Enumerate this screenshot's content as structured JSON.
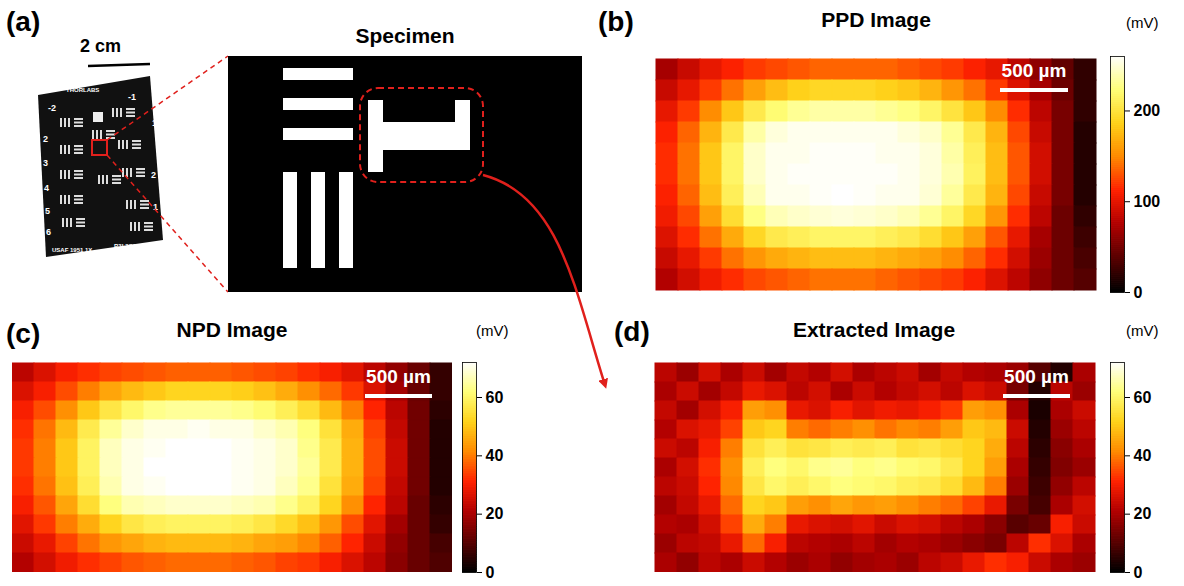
{
  "chart_data": [
    {
      "type": "image",
      "label": "(a)",
      "title": "Specimen",
      "scale_bar": "2 cm",
      "target_texts": [
        "THORLABS",
        "-2",
        "-1",
        "2",
        "3",
        "4",
        "5",
        "6",
        "1",
        "2",
        "1",
        "USAF 1951 1X",
        "R3L3S1N"
      ]
    },
    {
      "type": "heatmap",
      "label": "(b)",
      "title": "PPD Image",
      "scale_bar": "500 µm",
      "colorbar_label": "(mV)",
      "clim": [
        0,
        260
      ],
      "cticks": [
        0,
        100,
        200
      ],
      "cells": [
        [
          70,
          85,
          100,
          110,
          120,
          125,
          130,
          135,
          135,
          135,
          135,
          130,
          125,
          120,
          110,
          100,
          80,
          60,
          40,
          20
        ],
        [
          85,
          100,
          120,
          140,
          160,
          175,
          185,
          190,
          190,
          190,
          185,
          180,
          170,
          155,
          140,
          120,
          95,
          70,
          45,
          20
        ],
        [
          100,
          120,
          150,
          180,
          205,
          220,
          230,
          235,
          235,
          235,
          230,
          225,
          215,
          200,
          180,
          150,
          115,
          80,
          50,
          20
        ],
        [
          110,
          135,
          170,
          205,
          235,
          250,
          255,
          255,
          255,
          255,
          255,
          250,
          245,
          230,
          205,
          170,
          125,
          85,
          50,
          15
        ],
        [
          115,
          140,
          180,
          215,
          245,
          255,
          255,
          258,
          258,
          258,
          255,
          255,
          250,
          235,
          210,
          175,
          130,
          90,
          50,
          15
        ],
        [
          115,
          140,
          180,
          215,
          245,
          255,
          258,
          258,
          258,
          258,
          258,
          255,
          250,
          238,
          212,
          175,
          130,
          90,
          50,
          15
        ],
        [
          110,
          135,
          175,
          210,
          240,
          255,
          255,
          258,
          260,
          258,
          255,
          255,
          248,
          232,
          205,
          170,
          125,
          85,
          50,
          15
        ],
        [
          105,
          125,
          160,
          195,
          225,
          240,
          245,
          248,
          250,
          248,
          245,
          240,
          230,
          215,
          190,
          155,
          115,
          80,
          45,
          20
        ],
        [
          95,
          115,
          140,
          165,
          190,
          205,
          210,
          215,
          215,
          215,
          210,
          205,
          195,
          180,
          160,
          130,
          100,
          70,
          45,
          25
        ],
        [
          85,
          100,
          120,
          140,
          155,
          165,
          170,
          175,
          175,
          175,
          170,
          165,
          160,
          150,
          135,
          115,
          90,
          65,
          45,
          30
        ],
        [
          75,
          90,
          105,
          115,
          125,
          130,
          135,
          140,
          140,
          140,
          135,
          130,
          125,
          120,
          110,
          95,
          80,
          60,
          45,
          35
        ]
      ]
    },
    {
      "type": "heatmap",
      "label": "(c)",
      "title": "NPD Image",
      "scale_bar": "500 µm",
      "colorbar_label": "(mV)",
      "clim": [
        0,
        72
      ],
      "cticks": [
        0,
        20,
        40,
        60
      ],
      "cells": [
        [
          22,
          26,
          30,
          32,
          34,
          35,
          36,
          37,
          37,
          37,
          36,
          35,
          34,
          32,
          30,
          27,
          22,
          17,
          12,
          6
        ],
        [
          26,
          30,
          35,
          40,
          45,
          48,
          50,
          52,
          52,
          52,
          51,
          49,
          46,
          42,
          38,
          33,
          26,
          19,
          12,
          6
        ],
        [
          30,
          35,
          42,
          50,
          56,
          60,
          63,
          64,
          64,
          64,
          63,
          61,
          58,
          54,
          48,
          40,
          31,
          22,
          13,
          5
        ],
        [
          32,
          39,
          48,
          57,
          64,
          68,
          70,
          70,
          71,
          70,
          70,
          68,
          66,
          62,
          55,
          46,
          34,
          23,
          13,
          4
        ],
        [
          33,
          40,
          50,
          59,
          67,
          70,
          71,
          72,
          72,
          72,
          71,
          70,
          68,
          63,
          57,
          47,
          35,
          24,
          13,
          4
        ],
        [
          33,
          40,
          50,
          59,
          67,
          70,
          72,
          72,
          72,
          72,
          71,
          70,
          68,
          64,
          57,
          47,
          35,
          24,
          13,
          4
        ],
        [
          32,
          39,
          49,
          58,
          66,
          70,
          71,
          72,
          72,
          72,
          71,
          70,
          67,
          63,
          55,
          46,
          34,
          23,
          13,
          4
        ],
        [
          30,
          36,
          45,
          54,
          62,
          66,
          67,
          68,
          68,
          68,
          67,
          66,
          63,
          59,
          52,
          42,
          31,
          22,
          12,
          5
        ],
        [
          27,
          33,
          40,
          46,
          52,
          56,
          58,
          59,
          59,
          59,
          58,
          56,
          53,
          49,
          43,
          35,
          27,
          19,
          12,
          6
        ],
        [
          24,
          28,
          34,
          39,
          43,
          45,
          47,
          48,
          48,
          48,
          47,
          45,
          44,
          41,
          37,
          31,
          24,
          17,
          12,
          8
        ],
        [
          21,
          25,
          29,
          32,
          34,
          36,
          37,
          38,
          38,
          38,
          37,
          36,
          34,
          33,
          30,
          26,
          22,
          16,
          12,
          9
        ]
      ]
    },
    {
      "type": "heatmap",
      "label": "(d)",
      "title": "Extracted Image",
      "scale_bar": "500 µm",
      "colorbar_label": "(mV)",
      "clim": [
        0,
        72
      ],
      "cticks": [
        0,
        20,
        40,
        60
      ],
      "cells": [
        [
          22,
          18,
          25,
          20,
          24,
          19,
          23,
          21,
          25,
          20,
          22,
          24,
          19,
          23,
          21,
          20,
          18,
          10,
          4,
          20
        ],
        [
          20,
          24,
          19,
          23,
          28,
          26,
          22,
          25,
          20,
          24,
          21,
          23,
          25,
          22,
          26,
          24,
          14,
          4,
          22,
          18
        ],
        [
          23,
          19,
          25,
          30,
          44,
          42,
          28,
          26,
          30,
          27,
          29,
          28,
          30,
          33,
          44,
          42,
          20,
          3,
          20,
          24
        ],
        [
          21,
          26,
          28,
          34,
          50,
          52,
          40,
          38,
          40,
          42,
          39,
          41,
          40,
          44,
          50,
          48,
          24,
          4,
          18,
          22
        ],
        [
          24,
          22,
          30,
          40,
          55,
          58,
          55,
          56,
          58,
          57,
          58,
          55,
          56,
          54,
          52,
          46,
          22,
          5,
          16,
          20
        ],
        [
          20,
          25,
          32,
          42,
          58,
          62,
          60,
          63,
          64,
          62,
          63,
          61,
          60,
          57,
          52,
          44,
          20,
          6,
          15,
          18
        ],
        [
          22,
          24,
          31,
          41,
          56,
          60,
          58,
          60,
          62,
          61,
          60,
          58,
          57,
          54,
          48,
          40,
          18,
          7,
          17,
          22
        ],
        [
          19,
          23,
          28,
          38,
          52,
          50,
          44,
          42,
          45,
          43,
          44,
          42,
          40,
          38,
          34,
          28,
          14,
          8,
          20,
          25
        ],
        [
          21,
          20,
          25,
          34,
          46,
          40,
          28,
          26,
          25,
          27,
          24,
          26,
          25,
          22,
          20,
          16,
          10,
          12,
          30,
          24
        ],
        [
          18,
          22,
          23,
          28,
          38,
          30,
          22,
          21,
          20,
          22,
          19,
          21,
          20,
          18,
          16,
          14,
          22,
          32,
          26,
          20
        ],
        [
          20,
          17,
          22,
          20,
          24,
          21,
          18,
          20,
          17,
          19,
          20,
          18,
          22,
          24,
          28,
          32,
          30,
          24,
          20,
          18
        ]
      ]
    }
  ]
}
